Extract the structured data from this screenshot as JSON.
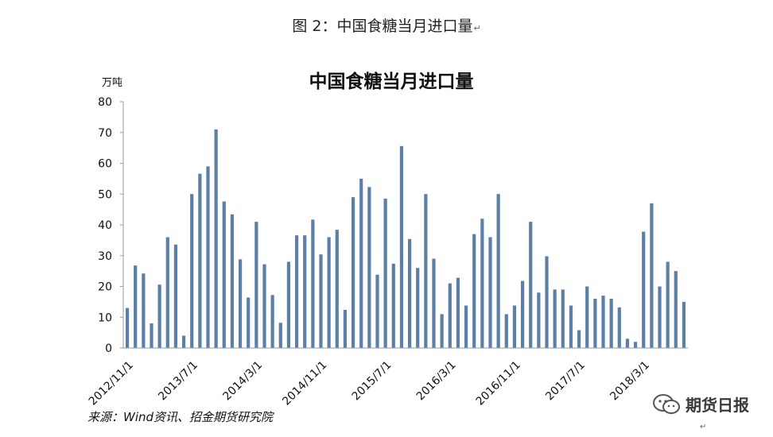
{
  "figure_caption": "图 2：中国食糖当月进口量",
  "source_note": "来源：Wind资讯、招金期货研究院",
  "watermark": {
    "text": "期货日报",
    "icon": "wechat-icon"
  },
  "colors": {
    "bar": "#5b7fa6",
    "axis": "#9a9a9a"
  },
  "chart_data": {
    "type": "bar",
    "title": "中国食糖当月进口量",
    "ylabel": "万吨",
    "xlabel": "",
    "ylim": [
      0,
      80
    ],
    "yticks": [
      0,
      10,
      20,
      30,
      40,
      50,
      60,
      70,
      80
    ],
    "x_tick_labels": [
      {
        "index": 0,
        "label": "2012/11/1"
      },
      {
        "index": 8,
        "label": "2013/7/1"
      },
      {
        "index": 16,
        "label": "2014/3/1"
      },
      {
        "index": 24,
        "label": "2014/11/1"
      },
      {
        "index": 32,
        "label": "2015/7/1"
      },
      {
        "index": 40,
        "label": "2016/3/1"
      },
      {
        "index": 48,
        "label": "2016/11/1"
      },
      {
        "index": 56,
        "label": "2017/7/1"
      },
      {
        "index": 64,
        "label": "2018/3/1"
      }
    ],
    "grid": false,
    "legend": "none",
    "values": [
      13,
      26.8,
      24.2,
      8,
      20.6,
      36,
      33.6,
      4,
      50,
      56.6,
      59,
      71,
      47.6,
      43.4,
      28.8,
      16.4,
      41,
      27.2,
      17.2,
      8.2,
      28,
      36.6,
      36.6,
      41.7,
      30.4,
      36,
      38.4,
      12.4,
      49,
      55,
      52.3,
      23.8,
      48.5,
      27.4,
      65.6,
      35.4,
      26,
      50,
      29,
      11,
      21,
      22.8,
      13.8,
      37,
      42,
      36,
      50,
      11,
      13.8,
      21.8,
      41,
      18,
      29.8,
      19,
      19,
      13.8,
      5.8,
      20,
      16,
      17,
      16,
      13.2,
      3,
      2,
      37.8,
      47,
      20,
      28,
      25,
      15
    ]
  }
}
